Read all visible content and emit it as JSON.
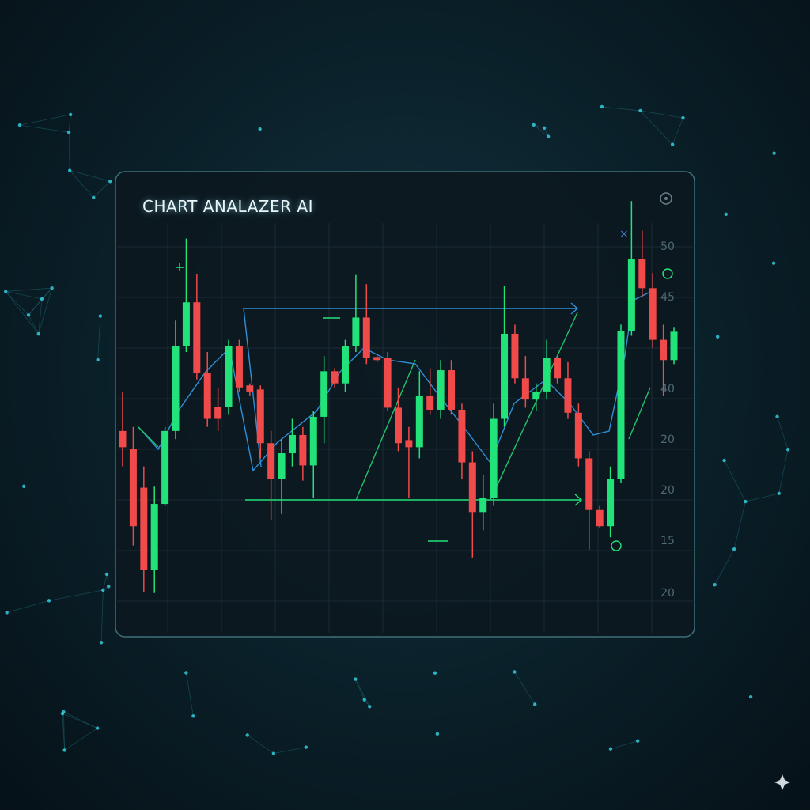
{
  "chart_data": {
    "type": "candlestick",
    "title": "CHART ANALAZER AI",
    "axis_labels": [
      "50",
      "45",
      "40",
      "20",
      "20",
      "15",
      "20"
    ],
    "up_color": "#22e27a",
    "down_color": "#f04a4a",
    "ylim": [
      12.5,
      56
    ],
    "open": [
      31.8,
      30.0,
      26.2,
      18.1,
      24.6,
      31.8,
      40.2,
      44.5,
      37.5,
      34.2,
      34.2,
      40.2,
      36.3,
      35.9,
      30.6,
      27.1,
      29.6,
      31.4,
      28.4,
      33.2,
      37.7,
      36.5,
      40.2,
      43.0,
      39.1,
      39.0,
      34.1,
      30.9,
      30.2,
      35.3,
      33.9,
      37.8,
      33.9,
      28.7,
      23.8,
      25.2,
      33.0,
      41.4,
      37.0,
      34.9,
      35.7,
      39.0,
      37.0,
      33.6,
      29.1,
      24.0,
      22.4,
      27.1,
      41.7,
      48.8,
      45.9,
      40.8,
      38.8
    ],
    "high": [
      35.7,
      32.2,
      28.3,
      26.3,
      32.2,
      42.7,
      50.8,
      47.3,
      39.6,
      36.1,
      40.8,
      40.8,
      36.5,
      36.3,
      31.8,
      31.0,
      33.0,
      32.2,
      33.8,
      39.2,
      38.0,
      40.8,
      47.2,
      46.3,
      39.2,
      39.6,
      36.1,
      32.2,
      37.7,
      38.0,
      38.8,
      38.8,
      34.5,
      29.8,
      27.5,
      34.5,
      46.1,
      42.3,
      39.2,
      36.5,
      40.8,
      39.2,
      38.6,
      34.5,
      29.8,
      24.4,
      28.3,
      42.3,
      54.5,
      51.6,
      47.4,
      42.3,
      42.0
    ],
    "low": [
      28.3,
      20.5,
      15.9,
      15.8,
      24.4,
      31.0,
      39.6,
      36.9,
      32.2,
      31.8,
      33.4,
      35.7,
      35.3,
      29.1,
      23.0,
      23.6,
      28.3,
      26.9,
      25.2,
      30.6,
      36.1,
      35.7,
      39.6,
      38.4,
      38.6,
      33.8,
      29.8,
      25.2,
      29.1,
      33.4,
      33.0,
      33.4,
      27.1,
      19.3,
      22.0,
      24.4,
      32.2,
      36.5,
      34.1,
      33.8,
      34.9,
      36.5,
      33.0,
      28.3,
      20.1,
      22.2,
      21.3,
      26.7,
      41.2,
      45.1,
      40.0,
      35.3,
      38.4
    ],
    "close": [
      30.2,
      22.4,
      18.1,
      24.6,
      31.8,
      40.2,
      44.5,
      37.5,
      33.0,
      33.0,
      40.2,
      36.1,
      35.7,
      30.6,
      27.1,
      29.6,
      31.4,
      28.4,
      33.2,
      37.7,
      36.5,
      40.2,
      43.0,
      39.0,
      38.8,
      34.1,
      30.6,
      30.2,
      35.3,
      33.9,
      37.8,
      33.9,
      28.7,
      23.8,
      25.2,
      33.0,
      41.4,
      37.0,
      34.9,
      35.7,
      39.0,
      37.0,
      33.6,
      29.1,
      24.0,
      22.4,
      27.1,
      41.7,
      48.8,
      45.9,
      40.8,
      38.8,
      41.6
    ]
  }
}
